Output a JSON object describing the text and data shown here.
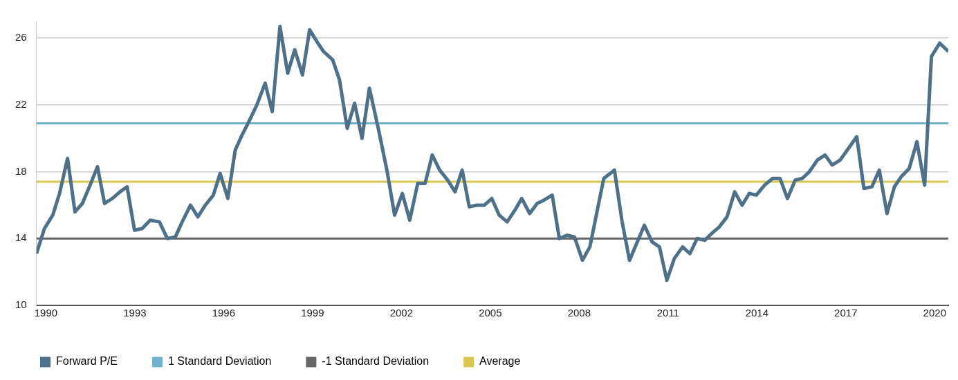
{
  "chart_data": {
    "type": "line",
    "xlim": [
      1989.68,
      2020.46
    ],
    "xticks": [
      1990,
      1993,
      1996,
      1999,
      2002,
      2005,
      2008,
      2011,
      2014,
      2017,
      2020
    ],
    "ylim": [
      10,
      27
    ],
    "yticks": [
      10,
      14,
      18,
      22,
      26
    ],
    "grid": "y",
    "legend": "bottom",
    "marker": "none",
    "line_style": "solid",
    "series": [
      {
        "name": "Forward P/E",
        "color": "#4e7189",
        "x": [
          1989.68,
          1989.95,
          1990.23,
          1990.46,
          1990.73,
          1990.98,
          1991.23,
          1991.49,
          1991.74,
          1991.98,
          1992.24,
          1992.5,
          1992.74,
          1992.99,
          1993.25,
          1993.52,
          1993.83,
          1994.1,
          1994.37,
          1994.6,
          1994.88,
          1995.13,
          1995.38,
          1995.65,
          1995.88,
          1996.14,
          1996.39,
          1996.62,
          1996.85,
          1997.12,
          1997.4,
          1997.64,
          1997.9,
          1998.16,
          1998.4,
          1998.66,
          1998.9,
          1999.18,
          1999.37,
          1999.68,
          1999.91,
          2000.17,
          2000.42,
          2000.67,
          2000.92,
          2001.23,
          2001.52,
          2001.77,
          2002.03,
          2002.28,
          2002.55,
          2002.8,
          2003.04,
          2003.29,
          2003.56,
          2003.81,
          2004.05,
          2004.29,
          2004.54,
          2004.8,
          2005.05,
          2005.3,
          2005.57,
          2005.83,
          2006.06,
          2006.33,
          2006.58,
          2006.81,
          2007.09,
          2007.33,
          2007.59,
          2007.84,
          2008.11,
          2008.36,
          2008.83,
          2009.19,
          2009.45,
          2009.7,
          2010.2,
          2010.46,
          2010.71,
          2010.96,
          2011.21,
          2011.49,
          2011.74,
          2011.98,
          2012.24,
          2012.47,
          2012.73,
          2012.99,
          2013.25,
          2013.5,
          2013.74,
          2013.98,
          2014.26,
          2014.53,
          2014.78,
          2015.03,
          2015.29,
          2015.53,
          2015.77,
          2016.04,
          2016.3,
          2016.54,
          2016.81,
          2017.09,
          2017.37,
          2017.61,
          2017.88,
          2018.13,
          2018.39,
          2018.64,
          2018.87,
          2019.14,
          2019.4,
          2019.66,
          2019.89,
          2020.17,
          2020.46
        ],
        "values": [
          13.1,
          14.6,
          15.4,
          16.7,
          18.8,
          15.6,
          16.1,
          17.2,
          18.3,
          16.1,
          16.4,
          16.8,
          17.1,
          14.5,
          14.6,
          15.1,
          15.0,
          14.0,
          14.1,
          15.0,
          16.0,
          15.3,
          16.0,
          16.6,
          17.9,
          16.4,
          19.3,
          20.2,
          21.0,
          22.0,
          23.3,
          21.6,
          26.7,
          23.9,
          25.3,
          23.8,
          26.5,
          25.7,
          25.2,
          24.7,
          23.5,
          20.6,
          22.1,
          20.0,
          23.0,
          20.5,
          18.0,
          15.4,
          16.7,
          15.1,
          17.3,
          17.3,
          19.0,
          18.1,
          17.5,
          16.8,
          18.1,
          15.9,
          16.0,
          16.0,
          16.4,
          15.4,
          15.0,
          15.7,
          16.4,
          15.5,
          16.1,
          16.3,
          16.6,
          14.0,
          14.2,
          14.1,
          12.7,
          13.5,
          17.6,
          18.1,
          15.0,
          12.7,
          14.8,
          13.8,
          13.5,
          11.5,
          12.8,
          13.5,
          13.1,
          14.0,
          13.9,
          14.3,
          14.7,
          15.3,
          16.8,
          16.0,
          16.7,
          16.6,
          17.2,
          17.6,
          17.6,
          16.4,
          17.5,
          17.6,
          18.0,
          18.7,
          19.0,
          18.4,
          18.7,
          19.4,
          20.1,
          17.0,
          17.1,
          18.1,
          15.5,
          17.1,
          17.7,
          18.2,
          19.8,
          17.2,
          24.9,
          25.7,
          25.2
        ]
      },
      {
        "name": "1 Standard Deviation",
        "color": "#6fb2cc",
        "x": [
          1989.68,
          2020.46
        ],
        "values": [
          20.9,
          20.9
        ]
      },
      {
        "name": "-1 Standard Deviation",
        "color": "#666666",
        "x": [
          1989.68,
          2020.46
        ],
        "values": [
          14.0,
          14.0
        ]
      },
      {
        "name": "Average",
        "color": "#d9c552",
        "x": [
          1989.68,
          2020.46
        ],
        "values": [
          17.4,
          17.4
        ]
      }
    ]
  }
}
